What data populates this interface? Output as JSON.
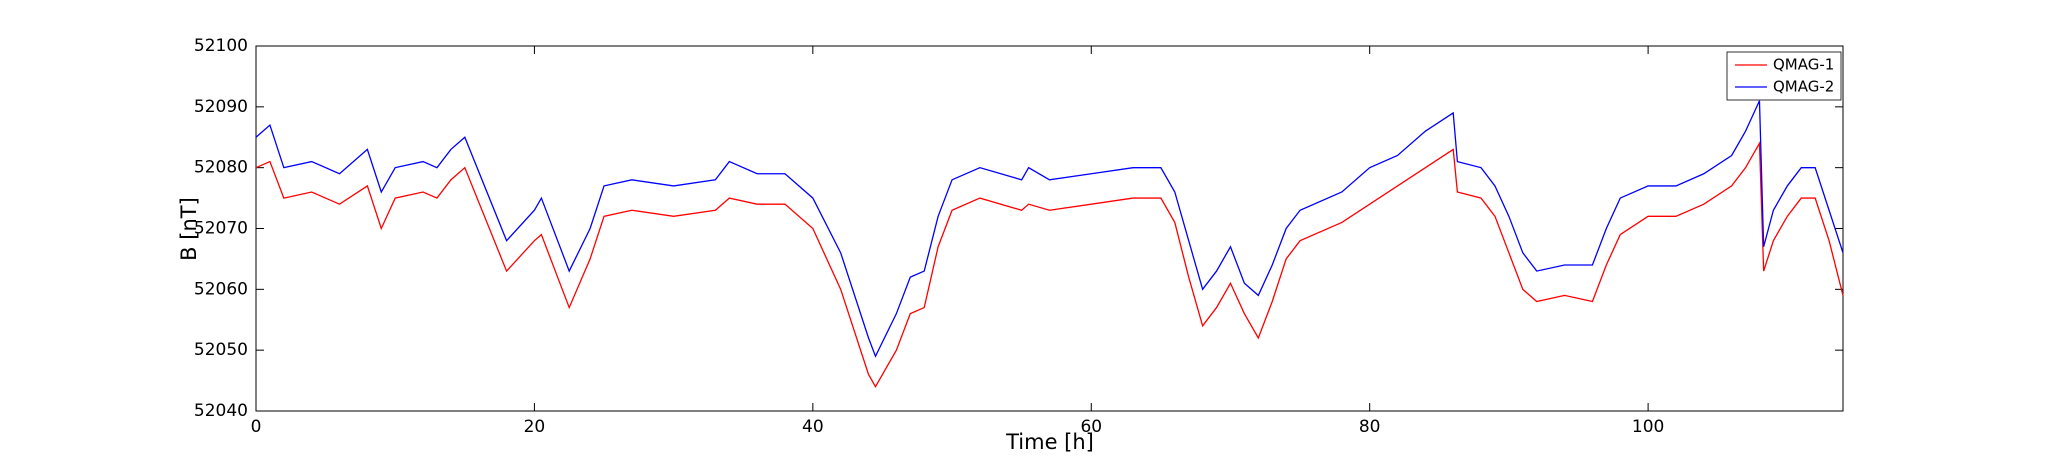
{
  "chart_data": {
    "type": "line",
    "x_label": "Time [h]",
    "y_label": "B [nT]",
    "x": [
      0,
      1,
      2,
      4,
      6,
      8,
      9,
      10,
      12,
      13,
      14,
      15,
      18,
      20,
      20.5,
      22.5,
      24,
      25,
      27,
      30,
      33,
      34,
      36,
      38,
      40,
      42,
      44,
      44.5,
      46,
      47,
      48,
      49,
      50,
      52,
      55,
      55.5,
      57,
      60,
      63,
      65,
      66,
      67,
      68,
      69,
      70,
      71,
      72,
      73,
      74,
      75,
      78,
      80,
      82,
      84,
      86,
      86.3,
      88,
      89,
      90,
      91,
      92,
      94,
      96,
      97,
      98,
      100,
      102,
      104,
      106,
      107,
      108,
      108.3,
      109,
      110,
      111,
      112,
      113,
      114
    ],
    "series": [
      {
        "name": "QMAG-1",
        "color": "#ff0000",
        "values": [
          52080,
          52081,
          52075,
          52076,
          52074,
          52077,
          52070,
          52075,
          52076,
          52075,
          52078,
          52080,
          52063,
          52068,
          52069,
          52057,
          52065,
          52072,
          52073,
          52072,
          52073,
          52075,
          52074,
          52074,
          52070,
          52060,
          52046,
          52044,
          52050,
          52056,
          52057,
          52067,
          52073,
          52075,
          52073,
          52074,
          52073,
          52074,
          52075,
          52075,
          52071,
          52062,
          52054,
          52057,
          52061,
          52056,
          52052,
          52058,
          52065,
          52068,
          52071,
          52074,
          52077,
          52080,
          52083,
          52076,
          52075,
          52072,
          52066,
          52060,
          52058,
          52059,
          52058,
          52064,
          52069,
          52072,
          52072,
          52074,
          52077,
          52080,
          52084,
          52063,
          52068,
          52072,
          52075,
          52075,
          52068,
          52059
        ]
      },
      {
        "name": "QMAG-2",
        "color": "#0000ff",
        "values": [
          52085,
          52087,
          52080,
          52081,
          52079,
          52083,
          52076,
          52080,
          52081,
          52080,
          52083,
          52085,
          52068,
          52073,
          52075,
          52063,
          52070,
          52077,
          52078,
          52077,
          52078,
          52081,
          52079,
          52079,
          52075,
          52066,
          52052,
          52049,
          52056,
          52062,
          52063,
          52072,
          52078,
          52080,
          52078,
          52080,
          52078,
          52079,
          52080,
          52080,
          52076,
          52068,
          52060,
          52063,
          52067,
          52061,
          52059,
          52064,
          52070,
          52073,
          52076,
          52080,
          52082,
          52086,
          52089,
          52081,
          52080,
          52077,
          52072,
          52066,
          52063,
          52064,
          52064,
          52070,
          52075,
          52077,
          52077,
          52079,
          52082,
          52086,
          52091,
          52067,
          52073,
          52077,
          52080,
          52080,
          52073,
          52066
        ]
      }
    ],
    "xlim": [
      0,
      114
    ],
    "xticks": [
      0,
      20,
      40,
      60,
      80,
      100
    ],
    "ylim": [
      52040,
      52100
    ],
    "yticks": [
      52040,
      52050,
      52060,
      52070,
      52080,
      52090,
      52100
    ],
    "grid": false,
    "legend": "upper right"
  }
}
